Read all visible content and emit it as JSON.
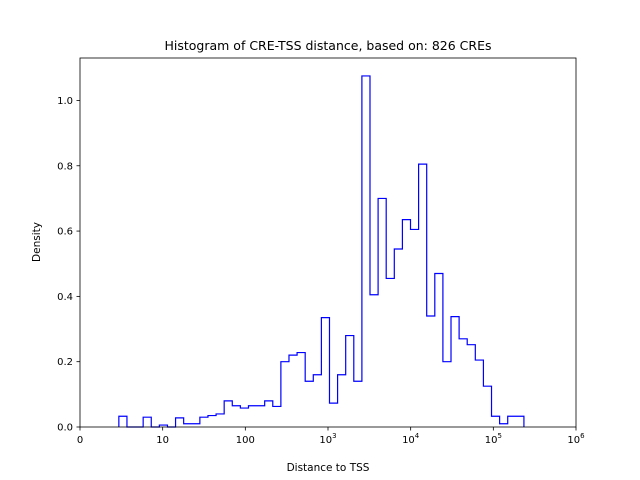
{
  "chart_data": {
    "type": "histogram-step",
    "title": "Histogram of CRE-TSS distance, based on: 826 CREs",
    "xlabel": "Distance to TSS",
    "ylabel": "Density",
    "x_scale": "log10 decades (0 at origin)",
    "xlim_decades": [
      0,
      6
    ],
    "ylim": [
      0,
      1.13
    ],
    "x_ticks": [
      {
        "pos": 0,
        "label": "0",
        "sup": ""
      },
      {
        "pos": 1,
        "label": "10",
        "sup": ""
      },
      {
        "pos": 2,
        "label": "100",
        "sup": ""
      },
      {
        "pos": 3,
        "label": "10",
        "sup": "3"
      },
      {
        "pos": 4,
        "label": "10",
        "sup": "4"
      },
      {
        "pos": 5,
        "label": "10",
        "sup": "5"
      },
      {
        "pos": 6,
        "label": "10",
        "sup": "6"
      }
    ],
    "y_ticks": [
      "0.0",
      "0.2",
      "0.4",
      "0.6",
      "0.8",
      "1.0"
    ],
    "bins_start_decade": 0.47,
    "bins_end_decade": 5.37,
    "densities": [
      0.033,
      0,
      0,
      0.03,
      0,
      0.006,
      0,
      0.028,
      0.01,
      0.01,
      0.03,
      0.035,
      0.04,
      0.08,
      0.065,
      0.058,
      0.065,
      0.065,
      0.08,
      0.063,
      0.2,
      0.22,
      0.228,
      0.14,
      0.16,
      0.335,
      0.073,
      0.16,
      0.28,
      0.14,
      1.075,
      0.405,
      0.7,
      0.455,
      0.545,
      0.635,
      0.605,
      0.805,
      0.34,
      0.47,
      0.2,
      0.338,
      0.27,
      0.252,
      0.205,
      0.125,
      0.033,
      0.01,
      0.033,
      0.033
    ],
    "color": "#0000ff",
    "grid": false,
    "legend": "none"
  }
}
